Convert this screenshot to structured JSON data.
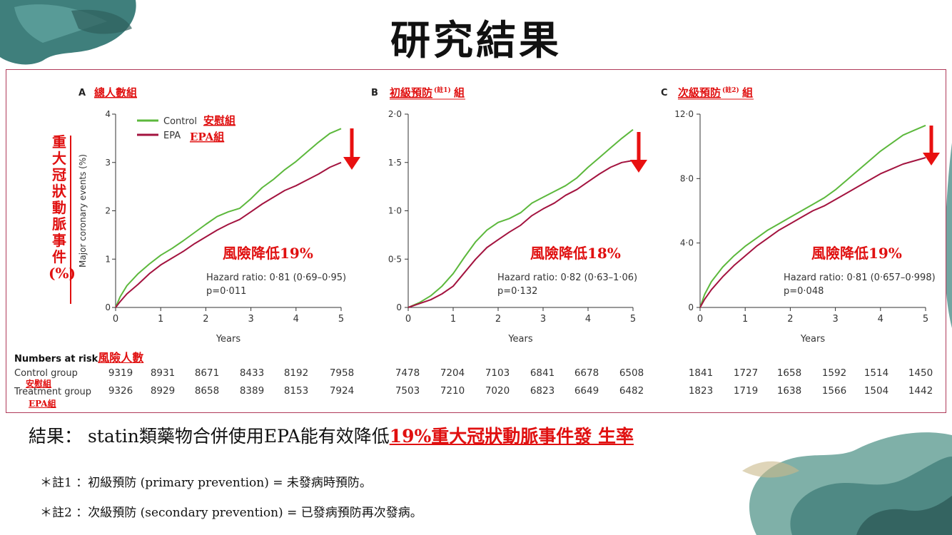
{
  "slide": {
    "title": "研究結果",
    "y_axis_title_zh": "重大冠狀動脈事件(%)",
    "conclusion_prefix": "結果： statin類藥物合併使用EPA能有效降低",
    "conclusion_highlight": "19%重大冠狀動脈事件發 生率",
    "note1": "＊註1 ：初級預防 (primary prevention) = 未發病時預防。",
    "note2": "＊註2 ：次級預防 (secondary prevention) = 已發病預防再次發病。"
  },
  "legend": {
    "control_en": "Control",
    "control_zh": "安慰組",
    "epa_en": "EPA",
    "epa_zh": "EPA組",
    "control_color": "#5cb83c",
    "epa_color": "#a3133f",
    "arrow_color": "#e81010"
  },
  "risk_table": {
    "header_en": "Numbers at risk",
    "header_zh": "風險人數",
    "control_label": "Control group",
    "control_label_zh": "安慰組",
    "treatment_label": "Treatment group",
    "treatment_label_zh": "EPA組"
  },
  "chart_data": [
    {
      "type": "line",
      "panel_letter": "A",
      "title": "總人數組",
      "xlabel": "Years",
      "ylabel": "Major coronary events (%)",
      "xlim": [
        0,
        5
      ],
      "ylim": [
        0,
        4
      ],
      "x_ticks": [
        "0",
        "1",
        "2",
        "3",
        "4",
        "5"
      ],
      "y_ticks": [
        "0",
        "1",
        "2",
        "3",
        "4"
      ],
      "risk_reduction": "風險降低19%",
      "hazard_ratio": "Hazard ratio: 0·81 (0·69–0·95)",
      "p_value": "p=0·011",
      "series": [
        {
          "name": "Control",
          "x": [
            0,
            0.1,
            0.25,
            0.5,
            0.75,
            1,
            1.25,
            1.5,
            1.75,
            2,
            2.25,
            2.5,
            2.75,
            3,
            3.25,
            3.5,
            3.75,
            4,
            4.25,
            4.5,
            4.75,
            5
          ],
          "values": [
            0,
            0.22,
            0.45,
            0.7,
            0.9,
            1.08,
            1.22,
            1.38,
            1.55,
            1.72,
            1.88,
            1.98,
            2.05,
            2.25,
            2.48,
            2.65,
            2.85,
            3.02,
            3.22,
            3.42,
            3.6,
            3.7
          ]
        },
        {
          "name": "EPA",
          "x": [
            0,
            0.1,
            0.25,
            0.5,
            0.75,
            1,
            1.25,
            1.5,
            1.75,
            2,
            2.25,
            2.5,
            2.75,
            3,
            3.25,
            3.5,
            3.75,
            4,
            4.25,
            4.5,
            4.75,
            5
          ],
          "values": [
            0,
            0.12,
            0.28,
            0.48,
            0.7,
            0.88,
            1.02,
            1.16,
            1.32,
            1.46,
            1.6,
            1.72,
            1.82,
            1.98,
            2.14,
            2.28,
            2.42,
            2.52,
            2.64,
            2.76,
            2.9,
            3.0
          ]
        }
      ],
      "numbers_at_risk": {
        "control": [
          "9319",
          "8931",
          "8671",
          "8433",
          "8192",
          "7958"
        ],
        "treatment": [
          "9326",
          "8929",
          "8658",
          "8389",
          "8153",
          "7924"
        ]
      }
    },
    {
      "type": "line",
      "panel_letter": "B",
      "title": "初級預防",
      "title_note": "(註1)",
      "title_suffix": "組",
      "xlabel": "Years",
      "ylabel": "",
      "xlim": [
        0,
        5
      ],
      "ylim": [
        0,
        2
      ],
      "x_ticks": [
        "0",
        "1",
        "2",
        "3",
        "4",
        "5"
      ],
      "y_ticks": [
        "0",
        "0·5",
        "1·0",
        "1·5",
        "2·0"
      ],
      "risk_reduction": "風險降低18%",
      "hazard_ratio": "Hazard ratio: 0·82 (0·63–1·06)",
      "p_value": "p=0·132",
      "series": [
        {
          "name": "Control",
          "x": [
            0,
            0.25,
            0.5,
            0.75,
            1,
            1.25,
            1.5,
            1.75,
            2,
            2.25,
            2.5,
            2.75,
            3,
            3.25,
            3.5,
            3.75,
            4,
            4.25,
            4.5,
            4.75,
            5
          ],
          "values": [
            0,
            0.05,
            0.12,
            0.22,
            0.35,
            0.52,
            0.68,
            0.8,
            0.88,
            0.92,
            0.98,
            1.08,
            1.14,
            1.2,
            1.26,
            1.34,
            1.45,
            1.55,
            1.65,
            1.75,
            1.84
          ]
        },
        {
          "name": "EPA",
          "x": [
            0,
            0.25,
            0.5,
            0.75,
            1,
            1.25,
            1.5,
            1.75,
            2,
            2.25,
            2.5,
            2.75,
            3,
            3.25,
            3.5,
            3.75,
            4,
            4.25,
            4.5,
            4.75,
            5
          ],
          "values": [
            0,
            0.04,
            0.08,
            0.14,
            0.22,
            0.36,
            0.5,
            0.62,
            0.7,
            0.78,
            0.85,
            0.95,
            1.02,
            1.08,
            1.16,
            1.22,
            1.3,
            1.38,
            1.45,
            1.5,
            1.52
          ]
        }
      ],
      "numbers_at_risk": {
        "control": [
          "7478",
          "7204",
          "7103",
          "6841",
          "6678",
          "6508"
        ],
        "treatment": [
          "7503",
          "7210",
          "7020",
          "6823",
          "6649",
          "6482"
        ]
      }
    },
    {
      "type": "line",
      "panel_letter": "C",
      "title": "次級預防",
      "title_note": "(註2)",
      "title_suffix": "組",
      "xlabel": "Years",
      "ylabel": "",
      "xlim": [
        0,
        5
      ],
      "ylim": [
        0,
        12
      ],
      "x_ticks": [
        "0",
        "1",
        "2",
        "3",
        "4",
        "5"
      ],
      "y_ticks": [
        "0",
        "4·0",
        "8·0",
        "12·0"
      ],
      "risk_reduction": "風險降低19%",
      "hazard_ratio": "Hazard ratio: 0·81 (0·657–0·998)",
      "p_value": "p=0·048",
      "series": [
        {
          "name": "Control",
          "x": [
            0,
            0.1,
            0.25,
            0.5,
            0.75,
            1,
            1.25,
            1.5,
            1.75,
            2,
            2.25,
            2.5,
            2.75,
            3,
            3.25,
            3.5,
            3.75,
            4,
            4.25,
            4.5,
            4.75,
            5
          ],
          "values": [
            0,
            0.8,
            1.6,
            2.5,
            3.2,
            3.8,
            4.3,
            4.8,
            5.2,
            5.6,
            6.0,
            6.4,
            6.8,
            7.3,
            7.9,
            8.5,
            9.1,
            9.7,
            10.2,
            10.7,
            11.0,
            11.3
          ]
        },
        {
          "name": "EPA",
          "x": [
            0,
            0.1,
            0.25,
            0.5,
            0.75,
            1,
            1.25,
            1.5,
            1.75,
            2,
            2.25,
            2.5,
            2.75,
            3,
            3.25,
            3.5,
            3.75,
            4,
            4.25,
            4.5,
            4.75,
            5
          ],
          "values": [
            0,
            0.5,
            1.1,
            1.9,
            2.6,
            3.2,
            3.8,
            4.3,
            4.8,
            5.2,
            5.6,
            6.0,
            6.3,
            6.7,
            7.1,
            7.5,
            7.9,
            8.3,
            8.6,
            8.9,
            9.1,
            9.3
          ]
        }
      ],
      "numbers_at_risk": {
        "control": [
          "1841",
          "1727",
          "1658",
          "1592",
          "1514",
          "1450"
        ],
        "treatment": [
          "1823",
          "1719",
          "1638",
          "1566",
          "1504",
          "1442"
        ]
      }
    }
  ]
}
